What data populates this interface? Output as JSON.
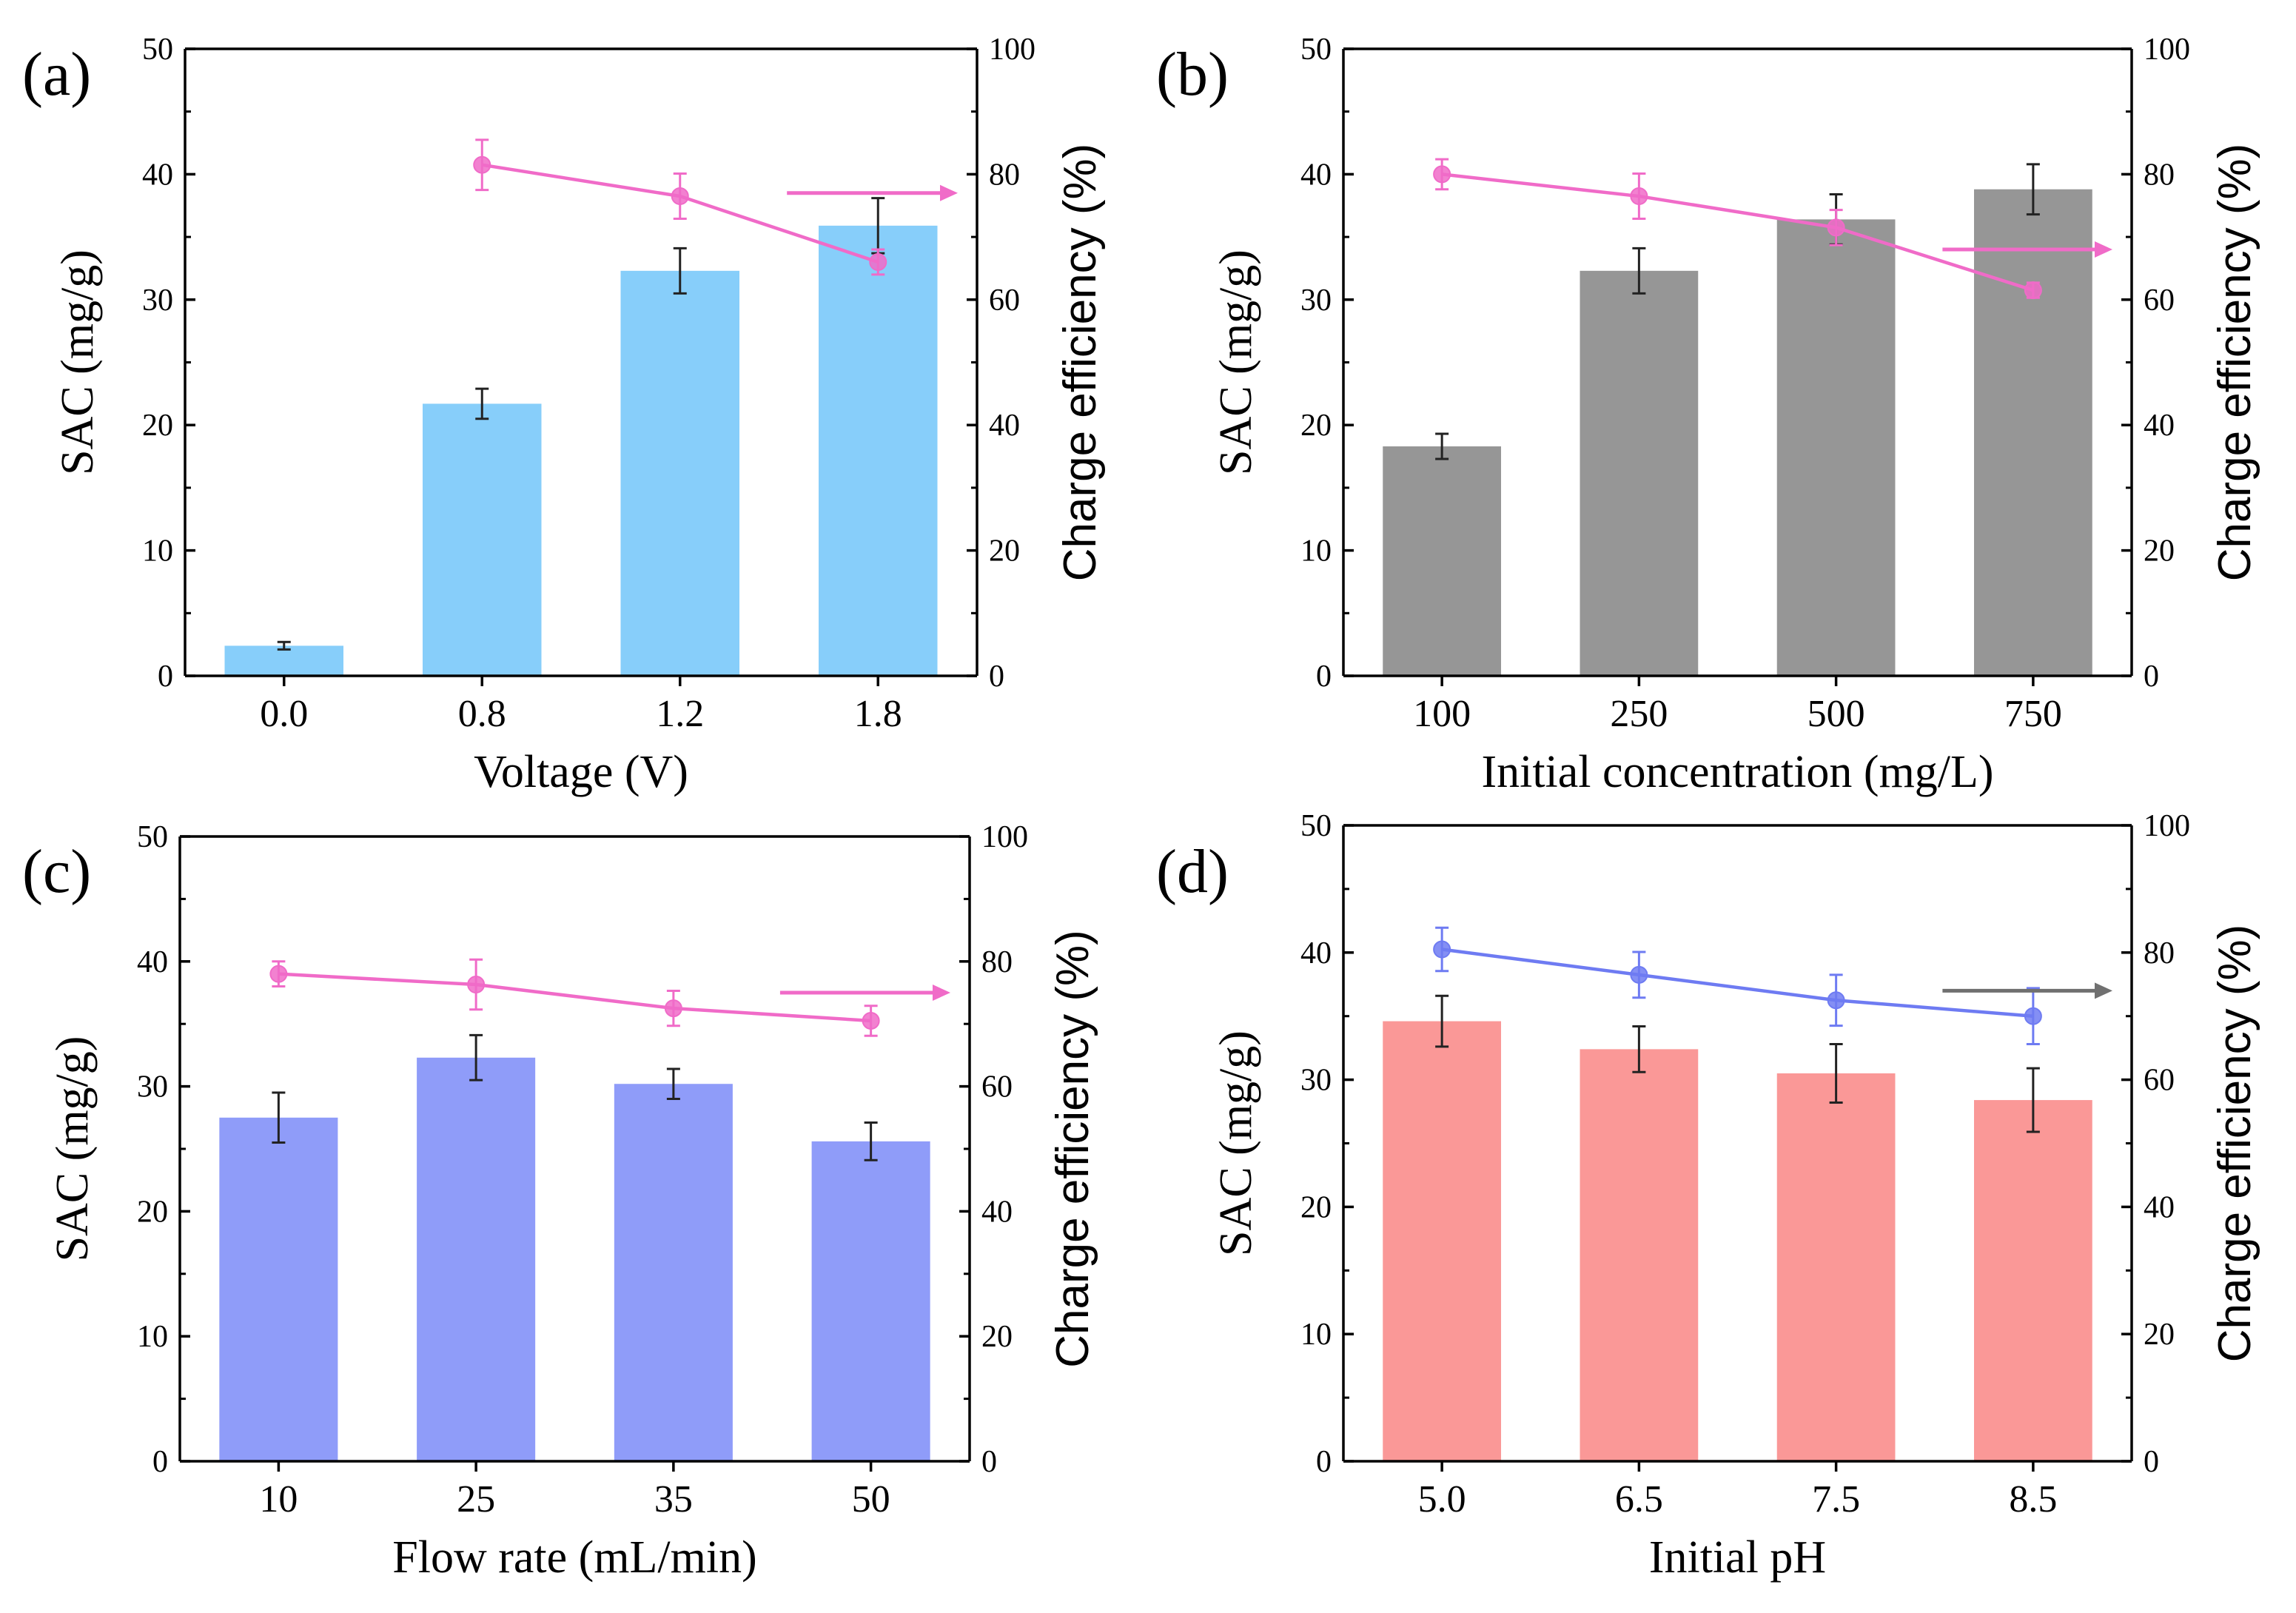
{
  "chart_data": [
    {
      "panel": "(a)",
      "type": "bar",
      "categories": [
        "0.0",
        "0.8",
        "1.2",
        "1.8"
      ],
      "xlabel": "Voltage (V)",
      "ylabel": "SAC (mg/g)",
      "y2label": "Charge efficiency (%)",
      "ylim": [
        0,
        50
      ],
      "y2lim": [
        0,
        100
      ],
      "yticks": [
        "0",
        "10",
        "20",
        "30",
        "40",
        "50"
      ],
      "y2ticks": [
        "0",
        "20",
        "40",
        "60",
        "80",
        "100"
      ],
      "bar_color": "#87CEFA",
      "line_color": "#F06BC8",
      "arrow_color": "#F06BC8",
      "arrow_direction": "right",
      "arrow_y2": 77,
      "bars": {
        "name": "SAC",
        "values": [
          2.4,
          21.7,
          32.3,
          35.9
        ],
        "errors": [
          0.3,
          1.2,
          1.8,
          2.2
        ]
      },
      "line": {
        "name": "Charge efficiency",
        "categories_index": [
          1,
          2,
          3
        ],
        "values": [
          81.5,
          76.5,
          66.0
        ],
        "errors": [
          4.0,
          3.6,
          2.0
        ]
      }
    },
    {
      "panel": "(b)",
      "type": "bar",
      "categories": [
        "100",
        "250",
        "500",
        "750"
      ],
      "xlabel": "Initial concentration (mg/L)",
      "ylabel": "SAC (mg/g)",
      "y2label": "Charge efficiency (%)",
      "ylim": [
        0,
        50
      ],
      "y2lim": [
        0,
        100
      ],
      "yticks": [
        "0",
        "10",
        "20",
        "30",
        "40",
        "50"
      ],
      "y2ticks": [
        "0",
        "20",
        "40",
        "60",
        "80",
        "100"
      ],
      "bar_color": "#969696",
      "line_color": "#F06BC8",
      "arrow_color": "#F06BC8",
      "arrow_direction": "right",
      "arrow_y2": 68,
      "bars": {
        "name": "SAC",
        "values": [
          18.3,
          32.3,
          36.4,
          38.8
        ],
        "errors": [
          1.0,
          1.8,
          2.0,
          2.0
        ]
      },
      "line": {
        "name": "Charge efficiency",
        "categories_index": [
          0,
          1,
          2,
          3
        ],
        "values": [
          80.0,
          76.5,
          71.5,
          61.5
        ],
        "errors": [
          2.4,
          3.6,
          2.8,
          1.2
        ]
      }
    },
    {
      "panel": "(c)",
      "type": "bar",
      "categories": [
        "10",
        "25",
        "35",
        "50"
      ],
      "xlabel": "Flow rate (mL/min)",
      "ylabel": "SAC (mg/g)",
      "y2label": "Charge efficiency (%)",
      "ylim": [
        0,
        50
      ],
      "y2lim": [
        0,
        100
      ],
      "yticks": [
        "0",
        "10",
        "20",
        "30",
        "40",
        "50"
      ],
      "y2ticks": [
        "0",
        "20",
        "40",
        "60",
        "80",
        "100"
      ],
      "bar_color": "#8F9CF9",
      "line_color": "#F06BC8",
      "arrow_color": "#F06BC8",
      "arrow_direction": "right",
      "arrow_y2": 75,
      "bars": {
        "name": "SAC",
        "values": [
          27.5,
          32.3,
          30.2,
          25.6
        ],
        "errors": [
          2.0,
          1.8,
          1.2,
          1.5
        ]
      },
      "line": {
        "name": "Charge efficiency",
        "categories_index": [
          0,
          1,
          2,
          3
        ],
        "values": [
          78.0,
          76.3,
          72.5,
          70.5
        ],
        "errors": [
          2.0,
          4.0,
          2.8,
          2.4
        ]
      }
    },
    {
      "panel": "(d)",
      "type": "bar",
      "categories": [
        "5.0",
        "6.5",
        "7.5",
        "8.5"
      ],
      "xlabel": "Initial pH",
      "ylabel": "SAC (mg/g)",
      "y2label": "Charge efficiency (%)",
      "ylim": [
        0,
        50
      ],
      "y2lim": [
        0,
        100
      ],
      "yticks": [
        "0",
        "10",
        "20",
        "30",
        "40",
        "50"
      ],
      "y2ticks": [
        "0",
        "20",
        "40",
        "60",
        "80",
        "100"
      ],
      "bar_color": "#FA9897",
      "line_color": "#6E7BF2",
      "arrow_color": "#707070",
      "arrow_direction": "right",
      "arrow_y2": 74,
      "bars": {
        "name": "SAC",
        "values": [
          34.6,
          32.4,
          30.5,
          28.4
        ],
        "errors": [
          2.0,
          1.8,
          2.3,
          2.5
        ]
      },
      "line": {
        "name": "Charge efficiency",
        "categories_index": [
          0,
          1,
          2,
          3
        ],
        "values": [
          80.5,
          76.5,
          72.5,
          70.0
        ],
        "errors": [
          3.4,
          3.6,
          4.0,
          4.4
        ]
      }
    }
  ]
}
